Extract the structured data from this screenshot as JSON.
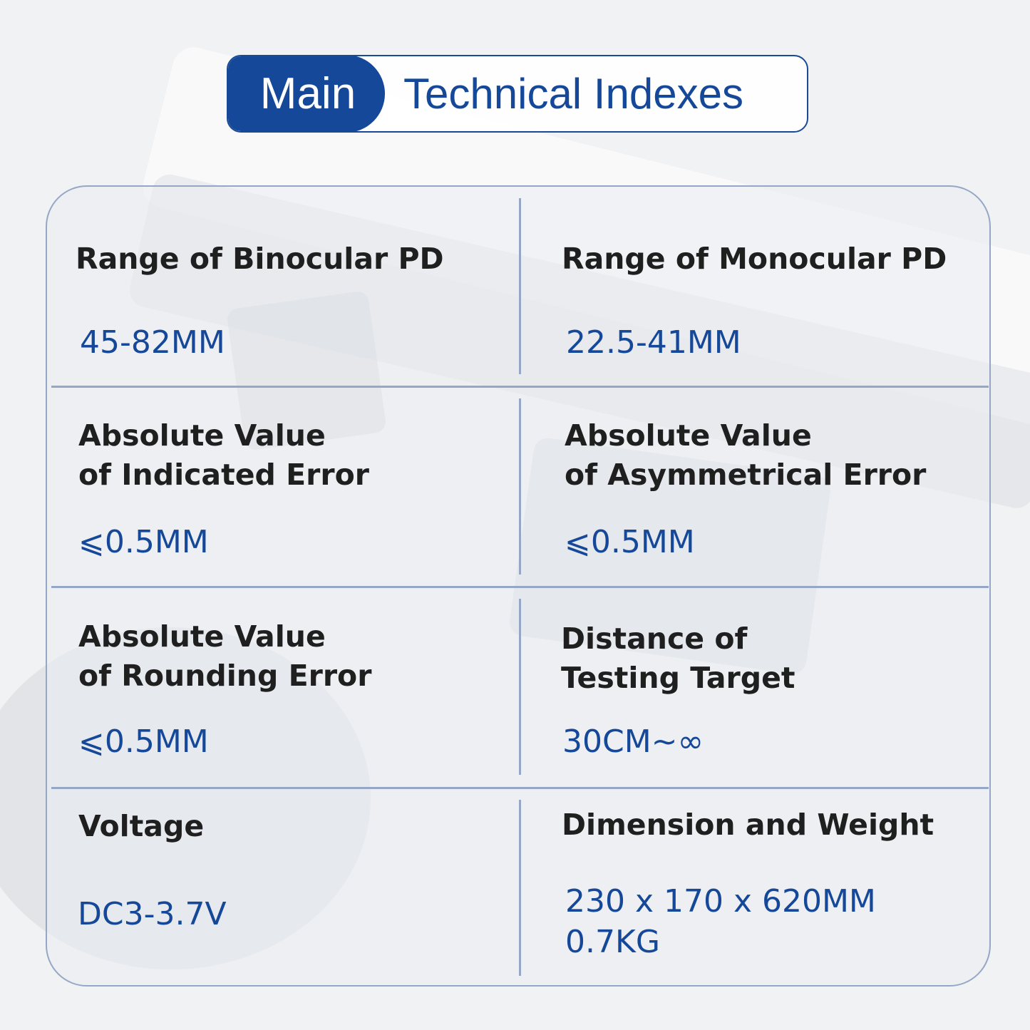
{
  "title": {
    "highlight": "Main",
    "rest": "Technical Indexes"
  },
  "specs": [
    {
      "label_lines": [
        "Range of Binocular PD"
      ],
      "value_lines": [
        "45-82MM"
      ]
    },
    {
      "label_lines": [
        "Range of Monocular PD"
      ],
      "value_lines": [
        "22.5-41MM"
      ]
    },
    {
      "label_lines": [
        "Absolute Value",
        "of Indicated Error"
      ],
      "value_lines": [
        "⩽0.5MM"
      ]
    },
    {
      "label_lines": [
        "Absolute Value",
        "of Asymmetrical Error"
      ],
      "value_lines": [
        "⩽0.5MM"
      ]
    },
    {
      "label_lines": [
        "Absolute Value",
        "of Rounding Error"
      ],
      "value_lines": [
        "⩽0.5MM"
      ]
    },
    {
      "label_lines": [
        "Distance of",
        "Testing Target"
      ],
      "value_lines": [
        "30CM~∞"
      ]
    },
    {
      "label_lines": [
        "Voltage"
      ],
      "value_lines": [
        "DC3-3.7V"
      ]
    },
    {
      "label_lines": [
        "Dimension and Weight"
      ],
      "value_lines": [
        "230 x 170 x 620MM",
        "0.7KG"
      ]
    }
  ],
  "colors": {
    "accent": "#154899",
    "border": "#96a7c6",
    "label_text": "#1f1f1f"
  }
}
